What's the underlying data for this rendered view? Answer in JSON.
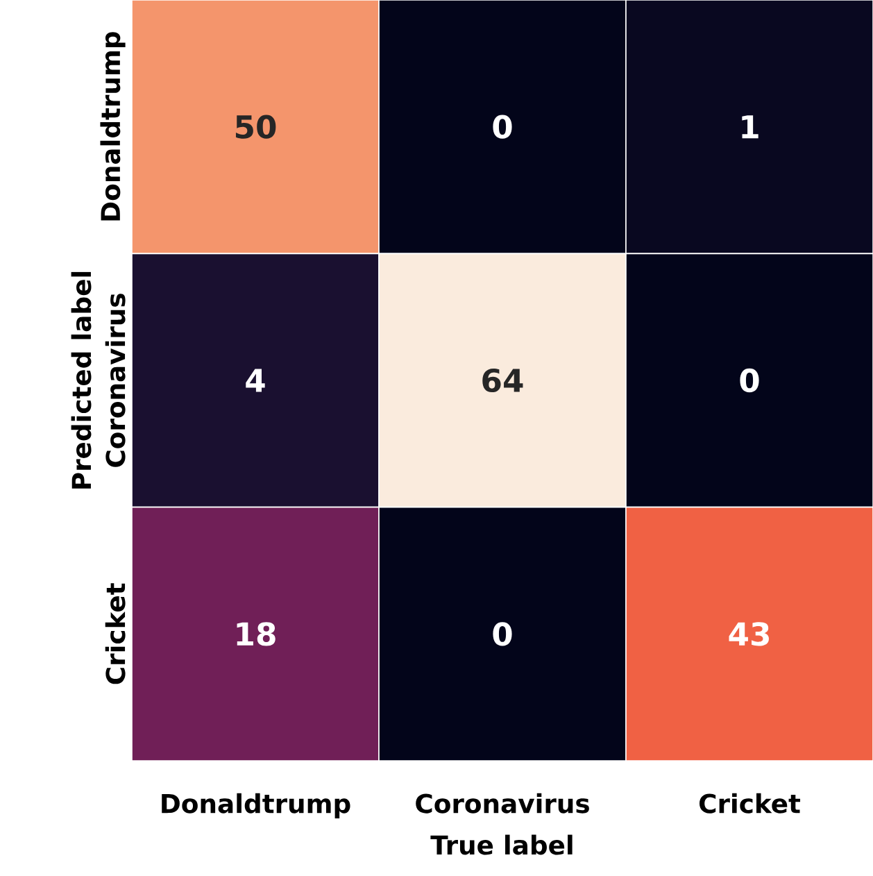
{
  "chart_data": {
    "type": "heatmap",
    "xlabel": "True label",
    "ylabel": "Predicted label",
    "categories": [
      "Donaldtrump",
      "Coronavirus",
      "Cricket"
    ],
    "y_categories": [
      "Donaldtrump",
      "Coronavirus",
      "Cricket"
    ],
    "data_labels": true,
    "cells": [
      [
        50,
        0,
        1
      ],
      [
        4,
        64,
        0
      ],
      [
        18,
        0,
        43
      ]
    ]
  }
}
